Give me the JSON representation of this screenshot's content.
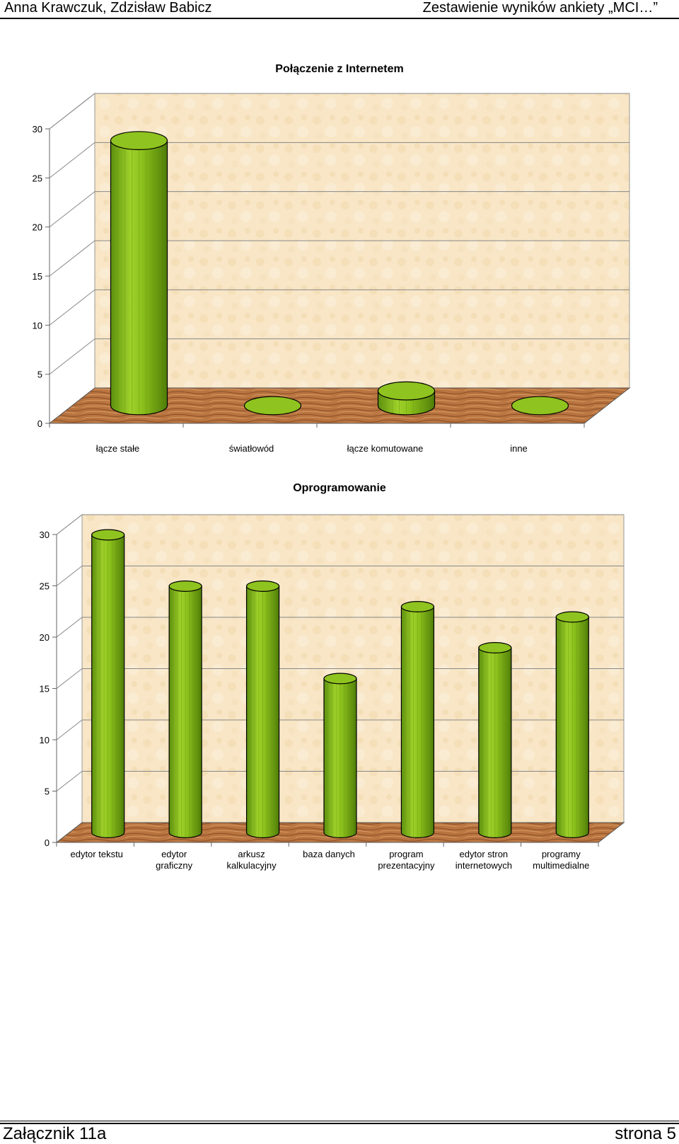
{
  "header": {
    "left_text": "Anna Krawczuk, Zdzisław Babicz",
    "right_text": "Zestawienie wyników ankiety „MCI…”"
  },
  "footer": {
    "left_text": "Załącznik 11a",
    "right_text": "strona 5"
  },
  "colors": {
    "bar_main": "#8fc31f",
    "bar_dark": "#5a8a10",
    "bar_light": "#b5e04a",
    "wall": "#f8e6c6",
    "floor": "#b5703a"
  },
  "chart_data": [
    {
      "type": "bar",
      "title": "Połączenie z Internetem",
      "categories": [
        "łącze stałe",
        "światłowód",
        "łącze komutowane",
        "inne"
      ],
      "values": [
        27,
        0,
        1.5,
        0
      ],
      "ylim": [
        0,
        30
      ],
      "yticks": [
        "0",
        "5",
        "10",
        "15",
        "20",
        "25",
        "30"
      ],
      "grid": true,
      "legend": "none",
      "style": "3d-cylinder"
    },
    {
      "type": "bar",
      "title": "Oprogramowanie",
      "categories": [
        "edytor tekstu",
        "edytor graficzny",
        "arkusz kalkulacyjny",
        "baza danych",
        "program prezentacyjny",
        "edytor stron internetowych",
        "programy multimedialne"
      ],
      "values": [
        29,
        24,
        24,
        15,
        22,
        18,
        21
      ],
      "ylim": [
        0,
        30
      ],
      "yticks": [
        "0",
        "5",
        "10",
        "15",
        "20",
        "25",
        "30"
      ],
      "grid": true,
      "legend": "none",
      "style": "3d-cylinder"
    }
  ]
}
